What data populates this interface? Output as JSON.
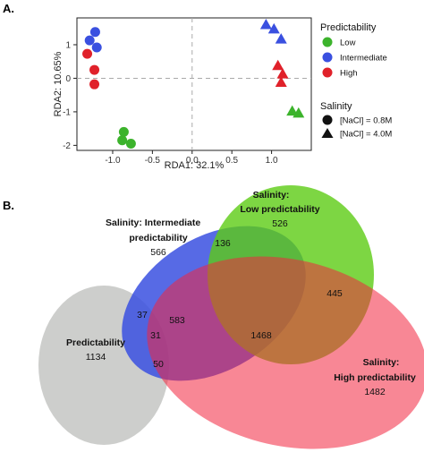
{
  "panels": {
    "a": "A.",
    "b": "B."
  },
  "chart_data": [
    {
      "type": "scatter",
      "xlabel": "RDA1: 32.1%",
      "ylabel": "RDA2: 10.65%",
      "xlim": [
        -1.45,
        1.5
      ],
      "ylim": [
        -2.15,
        1.8
      ],
      "x_ticks": [
        -1.0,
        -0.5,
        0.0,
        0.5,
        1.0
      ],
      "y_ticks": [
        -2,
        -1,
        0,
        1
      ],
      "x_tick_labels": [
        "-1.0",
        "-0.5",
        "0.0",
        "0.5",
        "1.0"
      ],
      "y_tick_labels": [
        "-2",
        "-1",
        "0",
        "1"
      ],
      "reference_lines": {
        "x": 0,
        "y": 0,
        "style": "dashed"
      },
      "grid": false,
      "legend_placement": "right",
      "legends": [
        {
          "title": "Predictability",
          "entries": [
            {
              "label": "Low",
              "color": "#3cb32c"
            },
            {
              "label": "Intermediate",
              "color": "#3a50e0"
            },
            {
              "label": "High",
              "color": "#e0212a"
            }
          ]
        },
        {
          "title": "Salinity",
          "entries": [
            {
              "label": "[NaCl] = 0.8M",
              "shape": "circle"
            },
            {
              "label": "[NaCl] = 4.0M",
              "shape": "triangle"
            }
          ]
        }
      ],
      "points": [
        {
          "x": -1.22,
          "y": 1.38,
          "group": "Intermediate",
          "salinity": "0.8M"
        },
        {
          "x": -1.29,
          "y": 1.13,
          "group": "Intermediate",
          "salinity": "0.8M"
        },
        {
          "x": -1.2,
          "y": 0.92,
          "group": "Intermediate",
          "salinity": "0.8M"
        },
        {
          "x": -1.32,
          "y": 0.73,
          "group": "High",
          "salinity": "0.8M"
        },
        {
          "x": -1.23,
          "y": 0.25,
          "group": "High",
          "salinity": "0.8M"
        },
        {
          "x": -1.23,
          "y": -0.18,
          "group": "High",
          "salinity": "0.8M"
        },
        {
          "x": -0.86,
          "y": -1.6,
          "group": "Low",
          "salinity": "0.8M"
        },
        {
          "x": -0.88,
          "y": -1.85,
          "group": "Low",
          "salinity": "0.8M"
        },
        {
          "x": -0.77,
          "y": -1.95,
          "group": "Low",
          "salinity": "0.8M"
        },
        {
          "x": 0.93,
          "y": 1.6,
          "group": "Intermediate",
          "salinity": "4.0M"
        },
        {
          "x": 1.03,
          "y": 1.47,
          "group": "Intermediate",
          "salinity": "4.0M"
        },
        {
          "x": 1.12,
          "y": 1.17,
          "group": "Intermediate",
          "salinity": "4.0M"
        },
        {
          "x": 1.08,
          "y": 0.38,
          "group": "High",
          "salinity": "4.0M"
        },
        {
          "x": 1.14,
          "y": 0.13,
          "group": "High",
          "salinity": "4.0M"
        },
        {
          "x": 1.12,
          "y": -0.12,
          "group": "High",
          "salinity": "4.0M"
        },
        {
          "x": 1.26,
          "y": -0.98,
          "group": "Low",
          "salinity": "4.0M"
        },
        {
          "x": 1.34,
          "y": -1.04,
          "group": "Low",
          "salinity": "4.0M"
        }
      ]
    },
    {
      "type": "venn",
      "sets": [
        {
          "name": "Salinity: Intermediate predictability",
          "label_line1": "Salinity: Intermediate",
          "label_line2": "predictability",
          "color": "#3a50e0"
        },
        {
          "name": "Salinity: Low predictability",
          "label_line1": "Salinity:",
          "label_line2": "Low predictability",
          "color": "#5ccc14"
        },
        {
          "name": "Salinity: High predictability",
          "label_line1": "Salinity:",
          "label_line2": "High predictability",
          "color": "#f2253e"
        },
        {
          "name": "Predictability",
          "label_line1": "Predictability",
          "color": "#c9cac8"
        }
      ],
      "counts": {
        "intermediate_only": 566,
        "low_only": 526,
        "high_only": 1482,
        "predictability_only": 1134,
        "intermediate_low": 136,
        "low_high": 445,
        "intermediate_high": 583,
        "intermediate_low_high": 1468,
        "predictability_intermediate": 37,
        "predictability_intermediate_high": 31,
        "predictability_high": 50
      }
    }
  ]
}
